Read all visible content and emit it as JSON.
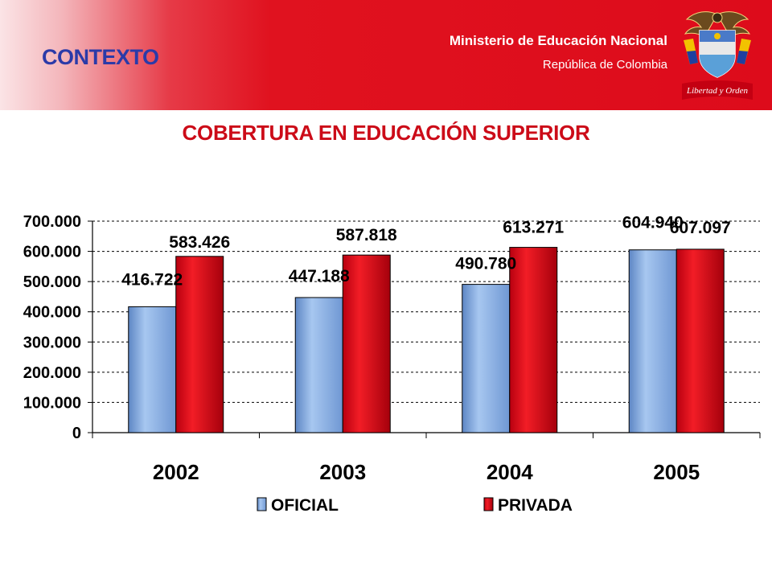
{
  "header": {
    "section": "CONTEXTO",
    "org_name": "Ministerio de Educación Nacional",
    "org_country": "República de Colombia",
    "seal_motto": "Libertad y Orden"
  },
  "colors": {
    "header_red": "#dd0b1b",
    "title_red": "#cc0b18",
    "section_blue": "#2b3aa8",
    "oficial_blue": "#8fb4e6",
    "privada_red": "#e0101c"
  },
  "chart_data": {
    "type": "bar",
    "title": "COBERTURA EN EDUCACIÓN SUPERIOR",
    "categories": [
      "2002",
      "2003",
      "2004",
      "2005"
    ],
    "series": [
      {
        "name": "OFICIAL",
        "values": [
          416722,
          447188,
          490780,
          604940
        ],
        "labels": [
          "416.722",
          "447.188",
          "490.780",
          "604.940"
        ]
      },
      {
        "name": "PRIVADA",
        "values": [
          583426,
          587818,
          613271,
          607097
        ],
        "labels": [
          "583.426",
          "587.818",
          "613.271",
          "607.097"
        ]
      }
    ],
    "ylim": [
      0,
      700000
    ],
    "y_ticks": [
      {
        "value": 0,
        "label": "0"
      },
      {
        "value": 100000,
        "label": "100.000"
      },
      {
        "value": 200000,
        "label": "200.000"
      },
      {
        "value": 300000,
        "label": "300.000"
      },
      {
        "value": 400000,
        "label": "400.000"
      },
      {
        "value": 500000,
        "label": "500.000"
      },
      {
        "value": 600000,
        "label": "600.000"
      },
      {
        "value": 700000,
        "label": "700.000"
      }
    ],
    "grid": true,
    "legend_position": "bottom"
  }
}
